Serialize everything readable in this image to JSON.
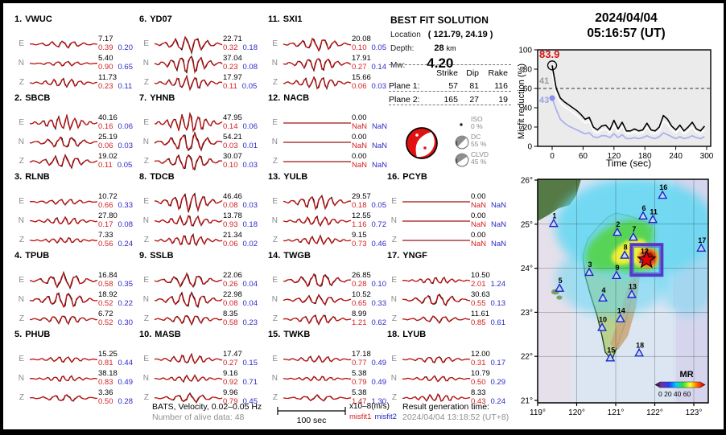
{
  "figure_title": {
    "date": "2024/04/04",
    "time": "05:16:57  (UT)"
  },
  "best_fit": {
    "title": "BEST FIT SOLUTION",
    "location_label": "Location",
    "location_value": "( 121.79,  24.19 )",
    "depth_label": "Depth:",
    "depth_value": "28",
    "depth_unit": "km",
    "mw_label": "Mw:",
    "mw_value": "4.20",
    "plane_table": {
      "col_headers": [
        "Strike",
        "Dip",
        "Rake"
      ],
      "rows": [
        {
          "label": "Plane 1:",
          "strike": "57",
          "dip": "81",
          "rake": "116"
        },
        {
          "label": "Plane 2:",
          "strike": "165",
          "dip": "27",
          "rake": "19"
        }
      ]
    },
    "decomposition": [
      {
        "name": "ISO",
        "pct": "0 %"
      },
      {
        "name": "DC",
        "pct": "55 %"
      },
      {
        "name": "CLVD",
        "pct": "45 %"
      }
    ],
    "beachball_color": "#e21111"
  },
  "channel_labels": [
    "E",
    "N",
    "Z"
  ],
  "stations": [
    {
      "n": "1.",
      "code": "VWUC",
      "ch": [
        {
          "amp": "7.17",
          "m1": "0.39",
          "m2": "0.20",
          "w": 0.35
        },
        {
          "amp": "5.40",
          "m1": "0.90",
          "m2": "0.65",
          "w": 0.25
        },
        {
          "amp": "11.73",
          "m1": "0.23",
          "m2": "0.11",
          "w": 0.45
        }
      ]
    },
    {
      "n": "2.",
      "code": "SBCB",
      "ch": [
        {
          "amp": "40.16",
          "m1": "0.16",
          "m2": "0.06",
          "w": 0.75
        },
        {
          "amp": "25.19",
          "m1": "0.06",
          "m2": "0.03",
          "w": 0.6
        },
        {
          "amp": "19.02",
          "m1": "0.11",
          "m2": "0.05",
          "w": 0.65
        }
      ]
    },
    {
      "n": "3.",
      "code": "RLNB",
      "ch": [
        {
          "amp": "10.72",
          "m1": "0.66",
          "m2": "0.33",
          "w": 0.3
        },
        {
          "amp": "27.80",
          "m1": "0.17",
          "m2": "0.08",
          "w": 0.4
        },
        {
          "amp": "7.33",
          "m1": "0.56",
          "m2": "0.24",
          "w": 0.3
        }
      ]
    },
    {
      "n": "4.",
      "code": "TPUB",
      "ch": [
        {
          "amp": "16.84",
          "m1": "0.58",
          "m2": "0.35",
          "w": 0.75
        },
        {
          "amp": "18.92",
          "m1": "0.52",
          "m2": "0.22",
          "w": 0.8
        },
        {
          "amp": "6.72",
          "m1": "0.52",
          "m2": "0.30",
          "w": 0.45
        }
      ]
    },
    {
      "n": "5.",
      "code": "PHUB",
      "ch": [
        {
          "amp": "15.25",
          "m1": "0.81",
          "m2": "0.44",
          "w": 0.3
        },
        {
          "amp": "38.18",
          "m1": "0.83",
          "m2": "0.49",
          "w": 0.3
        },
        {
          "amp": "3.36",
          "m1": "0.50",
          "m2": "0.28",
          "w": 0.35
        }
      ]
    },
    {
      "n": "6.",
      "code": "YD07",
      "ch": [
        {
          "amp": "22.71",
          "m1": "0.32",
          "m2": "0.18",
          "w": 0.8
        },
        {
          "amp": "37.04",
          "m1": "0.23",
          "m2": "0.08",
          "w": 0.95
        },
        {
          "amp": "17.97",
          "m1": "0.11",
          "m2": "0.05",
          "w": 0.7
        }
      ]
    },
    {
      "n": "7.",
      "code": "YHNB",
      "ch": [
        {
          "amp": "47.95",
          "m1": "0.14",
          "m2": "0.06",
          "w": 1.0
        },
        {
          "amp": "54.21",
          "m1": "0.03",
          "m2": "0.01",
          "w": 1.0
        },
        {
          "amp": "30.07",
          "m1": "0.10",
          "m2": "0.03",
          "w": 0.85
        }
      ]
    },
    {
      "n": "8.",
      "code": "TDCB",
      "ch": [
        {
          "amp": "46.46",
          "m1": "0.08",
          "m2": "0.03",
          "w": 1.0
        },
        {
          "amp": "13.78",
          "m1": "0.93",
          "m2": "0.18",
          "w": 0.6
        },
        {
          "amp": "21.34",
          "m1": "0.06",
          "m2": "0.02",
          "w": 0.6
        }
      ]
    },
    {
      "n": "9.",
      "code": "SSLB",
      "ch": [
        {
          "amp": "22.06",
          "m1": "0.26",
          "m2": "0.04",
          "w": 0.7
        },
        {
          "amp": "22.98",
          "m1": "0.08",
          "m2": "0.04",
          "w": 0.8
        },
        {
          "amp": "8.35",
          "m1": "0.58",
          "m2": "0.23",
          "w": 0.5
        }
      ]
    },
    {
      "n": "10.",
      "code": "MASB",
      "ch": [
        {
          "amp": "17.47",
          "m1": "0.27",
          "m2": "0.15",
          "w": 0.5
        },
        {
          "amp": "9.16",
          "m1": "0.92",
          "m2": "0.71",
          "w": 0.35
        },
        {
          "amp": "9.96",
          "m1": "0.79",
          "m2": "0.45",
          "w": 0.45
        }
      ]
    },
    {
      "n": "11.",
      "code": "SXI1",
      "ch": [
        {
          "amp": "20.08",
          "m1": "0.10",
          "m2": "0.05",
          "w": 0.65
        },
        {
          "amp": "17.91",
          "m1": "0.27",
          "m2": "0.14",
          "w": 0.7
        },
        {
          "amp": "15.66",
          "m1": "0.06",
          "m2": "0.03",
          "w": 0.65
        }
      ]
    },
    {
      "n": "12.",
      "code": "NACB",
      "ch": [
        {
          "amp": "0.00",
          "m1": "NaN",
          "m2": "NaN",
          "w": 0
        },
        {
          "amp": "0.00",
          "m1": "NaN",
          "m2": "NaN",
          "w": 0
        },
        {
          "amp": "0.00",
          "m1": "NaN",
          "m2": "NaN",
          "w": 0
        }
      ]
    },
    {
      "n": "13.",
      "code": "YULB",
      "ch": [
        {
          "amp": "29.57",
          "m1": "0.18",
          "m2": "0.05",
          "w": 0.75
        },
        {
          "amp": "12.55",
          "m1": "1.16",
          "m2": "0.72",
          "w": 0.5
        },
        {
          "amp": "9.15",
          "m1": "0.73",
          "m2": "0.46",
          "w": 0.45
        }
      ]
    },
    {
      "n": "14.",
      "code": "TWGB",
      "ch": [
        {
          "amp": "26.85",
          "m1": "0.28",
          "m2": "0.10",
          "w": 0.75
        },
        {
          "amp": "10.52",
          "m1": "0.65",
          "m2": "0.33",
          "w": 0.5
        },
        {
          "amp": "8.99",
          "m1": "1.21",
          "m2": "0.62",
          "w": 0.5
        }
      ]
    },
    {
      "n": "15.",
      "code": "TWKB",
      "ch": [
        {
          "amp": "17.18",
          "m1": "0.77",
          "m2": "0.49",
          "w": 0.35
        },
        {
          "amp": "5.38",
          "m1": "0.79",
          "m2": "0.49",
          "w": 0.25
        },
        {
          "amp": "5.38",
          "m1": "1.47",
          "m2": "1.30",
          "w": 0.3
        }
      ]
    },
    {
      "n": "16.",
      "code": "PCYB",
      "ch": [
        {
          "amp": "0.00",
          "m1": "NaN",
          "m2": "NaN",
          "w": 0
        },
        {
          "amp": "0.00",
          "m1": "NaN",
          "m2": "NaN",
          "w": 0
        },
        {
          "amp": "0.00",
          "m1": "NaN",
          "m2": "NaN",
          "w": 0
        }
      ]
    },
    {
      "n": "17.",
      "code": "YNGF",
      "ch": [
        {
          "amp": "10.50",
          "m1": "2.01",
          "m2": "1.24",
          "w": 0.35
        },
        {
          "amp": "30.63",
          "m1": "0.55",
          "m2": "0.13",
          "w": 0.6
        },
        {
          "amp": "11.61",
          "m1": "0.85",
          "m2": "0.61",
          "w": 0.35
        }
      ]
    },
    {
      "n": "18.",
      "code": "LYUB",
      "ch": [
        {
          "amp": "12.00",
          "m1": "0.31",
          "m2": "0.17",
          "w": 0.35
        },
        {
          "amp": "10.79",
          "m1": "0.50",
          "m2": "0.29",
          "w": 0.3
        },
        {
          "amp": "8.33",
          "m1": "0.43",
          "m2": "0.24",
          "w": 0.4
        }
      ]
    }
  ],
  "footer": {
    "line1": "BATS, Velocity, 0.02–0.05 Hz",
    "line2": "Number of alive data: 48",
    "scale_label": "100 sec",
    "amp_unit": "x10–8(m/s)",
    "misfit1": "misfit1",
    "misfit2": "misfit2",
    "result_label": "Result generation time:",
    "result_time": "2024/04/04 13:18:52 (UT+8)"
  },
  "chart_data": [
    {
      "type": "line",
      "title": "Misfit reduction versus inversion time",
      "xlabel": "Time (sec)",
      "ylabel": "Misfit reduction (%)",
      "xlim": [
        -15,
        300
      ],
      "ylim": [
        0,
        100
      ],
      "xticks": [
        0,
        60,
        120,
        180,
        240,
        300
      ],
      "yticks": [
        0,
        20,
        40,
        60,
        80,
        100
      ],
      "dashed_y": 60,
      "grid": false,
      "annotations": [
        {
          "text": "83.9",
          "color": "#d81414"
        },
        {
          "text": "41",
          "color": "#9a9a9a"
        },
        {
          "text": "43",
          "color": "#9aa2e6"
        }
      ],
      "t_step": 8,
      "series": [
        {
          "name": "lavender",
          "color": "#aab2ee",
          "values": [
            50,
            38,
            28,
            24,
            21,
            19,
            17,
            15,
            13,
            14,
            10,
            9,
            11,
            11,
            9,
            13,
            9,
            12,
            8,
            8,
            9,
            8,
            9,
            11,
            9,
            8,
            10,
            14,
            12,
            10,
            8,
            10,
            8,
            9,
            11,
            9,
            8,
            10
          ]
        },
        {
          "name": "white",
          "color": "#ffffff",
          "values": [
            75,
            54,
            45,
            41,
            38,
            35,
            32,
            28,
            24,
            26,
            16,
            14,
            17,
            18,
            14,
            22,
            15,
            21,
            13,
            13,
            15,
            13,
            14,
            20,
            14,
            13,
            16,
            26,
            23,
            17,
            14,
            18,
            13,
            16,
            20,
            15,
            13,
            17
          ]
        },
        {
          "name": "black",
          "color": "#000000",
          "values": [
            83.9,
            60,
            50,
            46,
            43,
            40,
            37,
            33,
            28,
            30,
            20,
            17,
            21,
            22,
            17,
            27,
            18,
            25,
            16,
            16,
            18,
            16,
            17,
            24,
            17,
            16,
            20,
            32,
            28,
            21,
            17,
            22,
            16,
            20,
            25,
            18,
            16,
            21
          ]
        }
      ]
    },
    {
      "type": "map",
      "region_lon": [
        119,
        123.4
      ],
      "region_lat": [
        20.9,
        26.0
      ],
      "lat_labels": [
        "26°",
        "25°",
        "24°",
        "23°",
        "22°",
        "21°"
      ],
      "lon_labels": [
        "119°",
        "120°",
        "121°",
        "122°",
        "123°"
      ],
      "legend_title": "MR",
      "legend_ticks": "0 20 40 60",
      "epicenter": {
        "lon": 121.79,
        "lat": 24.19
      },
      "stations": [
        {
          "n": "1",
          "lon": 119.41,
          "lat": 25.01
        },
        {
          "n": "2",
          "lon": 121.04,
          "lat": 24.81
        },
        {
          "n": "3",
          "lon": 120.32,
          "lat": 23.9
        },
        {
          "n": "4",
          "lon": 120.67,
          "lat": 23.32
        },
        {
          "n": "5",
          "lon": 119.56,
          "lat": 23.54
        },
        {
          "n": "6",
          "lon": 121.7,
          "lat": 25.18
        },
        {
          "n": "7",
          "lon": 121.45,
          "lat": 24.7
        },
        {
          "n": "8",
          "lon": 121.23,
          "lat": 24.29
        },
        {
          "n": "9",
          "lon": 121.02,
          "lat": 23.83
        },
        {
          "n": "10",
          "lon": 120.65,
          "lat": 22.65
        },
        {
          "n": "11",
          "lon": 121.95,
          "lat": 25.1
        },
        {
          "n": "12",
          "lon": 121.72,
          "lat": 24.2
        },
        {
          "n": "13",
          "lon": 121.41,
          "lat": 23.4
        },
        {
          "n": "14",
          "lon": 121.12,
          "lat": 22.85
        },
        {
          "n": "15",
          "lon": 120.86,
          "lat": 21.96
        },
        {
          "n": "16",
          "lon": 122.2,
          "lat": 25.65
        },
        {
          "n": "17",
          "lon": 123.19,
          "lat": 24.45
        },
        {
          "n": "18",
          "lon": 121.6,
          "lat": 22.07
        }
      ]
    }
  ]
}
